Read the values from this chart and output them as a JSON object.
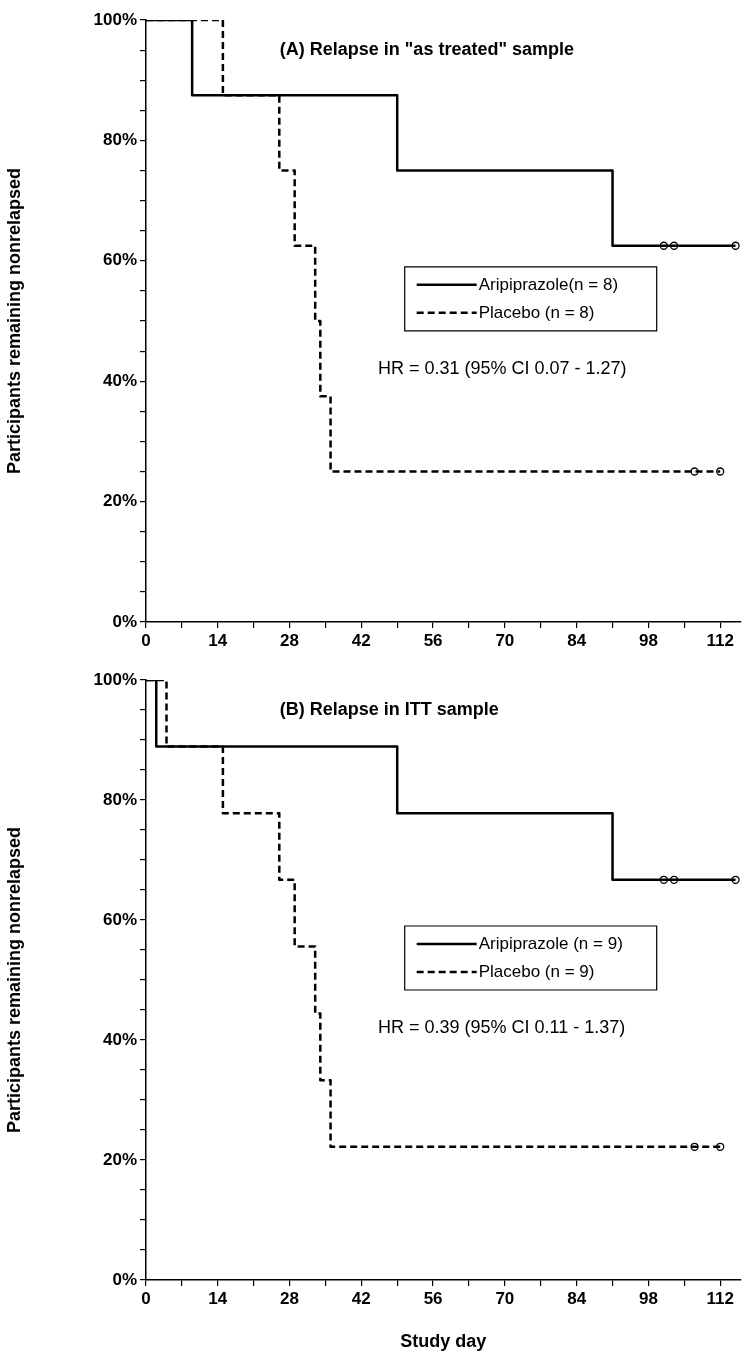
{
  "chart_data": [
    {
      "type": "step",
      "title": "(A) Relapse in \"as treated\" sample",
      "ylabel": "Participants remaining nonrelapsed",
      "annotations": [
        "HR = 0.31 (95% CI 0.07 - 1.27)"
      ],
      "xlim": [
        0,
        116
      ],
      "xticks": [
        0,
        {
          "value": 7,
          "label": null
        },
        14,
        {
          "value": 21,
          "label": null
        },
        28,
        {
          "value": 35,
          "label": null
        },
        42,
        {
          "value": 49,
          "label": null
        },
        56,
        {
          "value": 63,
          "label": null
        },
        70,
        {
          "value": 77,
          "label": null
        },
        84,
        {
          "value": 91,
          "label": null
        },
        98,
        {
          "value": 105,
          "label": null
        },
        112
      ],
      "ylim": [
        0,
        100
      ],
      "yticks": [
        {
          "value": 0,
          "label": "0%"
        },
        {
          "value": 5,
          "label": null
        },
        {
          "value": 10,
          "label": null
        },
        {
          "value": 15,
          "label": null
        },
        {
          "value": 20,
          "label": "20%"
        },
        {
          "value": 25,
          "label": null
        },
        {
          "value": 30,
          "label": null
        },
        {
          "value": 35,
          "label": null
        },
        {
          "value": 40,
          "label": "40%"
        },
        {
          "value": 45,
          "label": null
        },
        {
          "value": 50,
          "label": null
        },
        {
          "value": 55,
          "label": null
        },
        {
          "value": 60,
          "label": "60%"
        },
        {
          "value": 65,
          "label": null
        },
        {
          "value": 70,
          "label": null
        },
        {
          "value": 75,
          "label": null
        },
        {
          "value": 80,
          "label": "80%"
        },
        {
          "value": 85,
          "label": null
        },
        {
          "value": 90,
          "label": null
        },
        {
          "value": 95,
          "label": null
        },
        {
          "value": 100,
          "label": "100%"
        }
      ],
      "grid": false,
      "legend": "right",
      "series": [
        {
          "name": "Aripiprazole(n = 8)",
          "color": "#000000",
          "line_style": "solid",
          "x": [
            0,
            9,
            49,
            91,
            115
          ],
          "values": [
            100,
            87.5,
            75,
            62.5,
            62.5
          ]
        },
        {
          "name": "Placebo (n = 8)",
          "color": "#000000",
          "line_style": "dashed",
          "x": [
            0,
            15,
            26,
            29,
            33,
            34,
            36,
            112
          ],
          "values": [
            100,
            87.5,
            75,
            62.5,
            50,
            37.5,
            25,
            25
          ]
        },
        {
          "type": "scatter",
          "marker": "circle",
          "color": "#000000",
          "x": [
            101,
            103,
            115
          ],
          "values": [
            62.5,
            62.5,
            62.5
          ]
        },
        {
          "type": "scatter",
          "marker": "circle",
          "color": "#000000",
          "x": [
            107,
            112
          ],
          "values": [
            25,
            25
          ]
        }
      ]
    },
    {
      "type": "step",
      "title": "(B) Relapse in ITT sample",
      "xlabel": "Study day",
      "ylabel": "Participants remaining nonrelapsed",
      "annotations": [
        "HR = 0.39 (95% CI 0.11 - 1.37)"
      ],
      "xlim": [
        0,
        116
      ],
      "xticks": [
        0,
        {
          "value": 7,
          "label": null
        },
        14,
        {
          "value": 21,
          "label": null
        },
        28,
        {
          "value": 35,
          "label": null
        },
        42,
        {
          "value": 49,
          "label": null
        },
        56,
        {
          "value": 63,
          "label": null
        },
        70,
        {
          "value": 77,
          "label": null
        },
        84,
        {
          "value": 91,
          "label": null
        },
        98,
        {
          "value": 105,
          "label": null
        },
        112
      ],
      "ylim": [
        0,
        100
      ],
      "yticks": [
        {
          "value": 0,
          "label": "0%"
        },
        {
          "value": 5,
          "label": null
        },
        {
          "value": 10,
          "label": null
        },
        {
          "value": 15,
          "label": null
        },
        {
          "value": 20,
          "label": "20%"
        },
        {
          "value": 25,
          "label": null
        },
        {
          "value": 30,
          "label": null
        },
        {
          "value": 35,
          "label": null
        },
        {
          "value": 40,
          "label": "40%"
        },
        {
          "value": 45,
          "label": null
        },
        {
          "value": 50,
          "label": null
        },
        {
          "value": 55,
          "label": null
        },
        {
          "value": 60,
          "label": "60%"
        },
        {
          "value": 65,
          "label": null
        },
        {
          "value": 70,
          "label": null
        },
        {
          "value": 75,
          "label": null
        },
        {
          "value": 80,
          "label": "80%"
        },
        {
          "value": 85,
          "label": null
        },
        {
          "value": 90,
          "label": null
        },
        {
          "value": 95,
          "label": null
        },
        {
          "value": 100,
          "label": "100%"
        }
      ],
      "grid": false,
      "legend": "right",
      "series": [
        {
          "name": "Aripiprazole (n = 9)",
          "color": "#000000",
          "line_style": "solid",
          "x": [
            0,
            2,
            49,
            91,
            115
          ],
          "values": [
            100,
            88.9,
            77.8,
            66.7,
            66.7
          ]
        },
        {
          "name": "Placebo (n = 9)",
          "color": "#000000",
          "line_style": "dashed",
          "x": [
            0,
            4,
            15,
            26,
            29,
            33,
            34,
            36,
            112
          ],
          "values": [
            100,
            88.9,
            77.8,
            66.7,
            55.6,
            44.4,
            33.3,
            22.2,
            22.2
          ]
        },
        {
          "type": "scatter",
          "marker": "circle",
          "color": "#000000",
          "x": [
            101,
            103,
            115
          ],
          "values": [
            66.7,
            66.7,
            66.7
          ]
        },
        {
          "type": "scatter",
          "marker": "circle",
          "color": "#000000",
          "x": [
            107,
            112
          ],
          "values": [
            22.2,
            22.2
          ]
        }
      ]
    }
  ]
}
